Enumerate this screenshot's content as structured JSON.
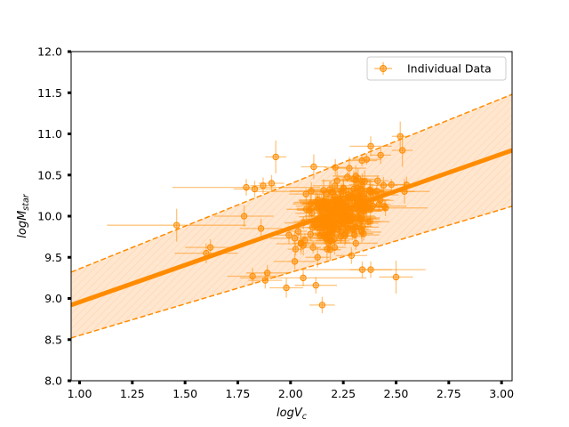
{
  "chart_data": {
    "type": "scatter",
    "title": "",
    "xlabel": "logV",
    "xlabel_sub": "c",
    "ylabel": "logM",
    "ylabel_sub": "star",
    "xlim": [
      0.96,
      3.05
    ],
    "ylim": [
      8.0,
      12.0
    ],
    "x_ticks": [
      1.0,
      1.25,
      1.5,
      1.75,
      2.0,
      2.25,
      2.5,
      2.75,
      3.0
    ],
    "x_tick_labels": [
      "1.00",
      "1.25",
      "1.50",
      "1.75",
      "2.00",
      "2.25",
      "2.50",
      "2.75",
      "3.00"
    ],
    "y_ticks": [
      8.0,
      8.5,
      9.0,
      9.5,
      10.0,
      10.5,
      11.0,
      11.5,
      12.0
    ],
    "y_tick_labels": [
      "8.0",
      "8.5",
      "9.0",
      "9.5",
      "10.0",
      "10.5",
      "11.0",
      "11.5",
      "12.0"
    ],
    "legend": {
      "label": "Individual Data",
      "placement": "top-right"
    },
    "fit_line": {
      "x": [
        0.96,
        3.05
      ],
      "y": [
        8.92,
        10.8
      ]
    },
    "band_upper": {
      "x": [
        0.96,
        3.05
      ],
      "y": [
        9.32,
        11.48
      ]
    },
    "band_lower": {
      "x": [
        0.96,
        3.05
      ],
      "y": [
        8.52,
        10.12
      ]
    },
    "colors": {
      "points": "#ff8c00",
      "fit": "#ff8c00",
      "band": "#ffe0c2"
    },
    "seed": 7,
    "n_generated": 240,
    "points": [
      {
        "x": 1.46,
        "y": 9.89,
        "xerr": 0.33,
        "yerr": 0.2
      },
      {
        "x": 1.6,
        "y": 9.55,
        "xerr": 0.15,
        "yerr": 0.12
      },
      {
        "x": 1.62,
        "y": 9.62,
        "xerr": 0.12,
        "yerr": 0.1
      },
      {
        "x": 1.78,
        "y": 10.0,
        "xerr": 0.14,
        "yerr": 0.13
      },
      {
        "x": 1.79,
        "y": 10.35,
        "xerr": 0.35,
        "yerr": 0.1
      },
      {
        "x": 1.82,
        "y": 9.27,
        "xerr": 0.12,
        "yerr": 0.1
      },
      {
        "x": 1.83,
        "y": 10.33,
        "xerr": 0.1,
        "yerr": 0.1
      },
      {
        "x": 1.86,
        "y": 9.85,
        "xerr": 0.1,
        "yerr": 0.12
      },
      {
        "x": 1.87,
        "y": 10.37,
        "xerr": 0.06,
        "yerr": 0.1
      },
      {
        "x": 1.88,
        "y": 9.22,
        "xerr": 0.08,
        "yerr": 0.1
      },
      {
        "x": 1.89,
        "y": 9.31,
        "xerr": 0.1,
        "yerr": 0.1
      },
      {
        "x": 1.91,
        "y": 10.4,
        "xerr": 0.06,
        "yerr": 0.1
      },
      {
        "x": 1.93,
        "y": 10.72,
        "xerr": 0.05,
        "yerr": 0.2
      },
      {
        "x": 1.98,
        "y": 9.13,
        "xerr": 0.08,
        "yerr": 0.12
      },
      {
        "x": 2.02,
        "y": 9.45,
        "xerr": 0.1,
        "yerr": 0.1
      },
      {
        "x": 2.06,
        "y": 9.25,
        "xerr": 0.3,
        "yerr": 0.1
      },
      {
        "x": 2.11,
        "y": 10.6,
        "xerr": 0.06,
        "yerr": 0.15
      },
      {
        "x": 2.12,
        "y": 9.16,
        "xerr": 0.1,
        "yerr": 0.1
      },
      {
        "x": 2.15,
        "y": 8.92,
        "xerr": 0.06,
        "yerr": 0.1
      },
      {
        "x": 2.34,
        "y": 9.35,
        "xerr": 0.3,
        "yerr": 0.1
      },
      {
        "x": 2.38,
        "y": 10.85,
        "xerr": 0.1,
        "yerr": 0.12
      },
      {
        "x": 2.38,
        "y": 9.35,
        "xerr": 0.1,
        "yerr": 0.1
      },
      {
        "x": 2.5,
        "y": 9.26,
        "xerr": 0.08,
        "yerr": 0.2
      },
      {
        "x": 2.52,
        "y": 10.97,
        "xerr": 0.04,
        "yerr": 0.18
      },
      {
        "x": 2.53,
        "y": 10.8,
        "xerr": 0.05,
        "yerr": 0.2
      },
      {
        "x": 2.54,
        "y": 10.3,
        "xerr": 0.05,
        "yerr": 0.15
      },
      {
        "x": 2.55,
        "y": 10.38,
        "xerr": 0.05,
        "yerr": 0.1
      },
      {
        "x": 2.24,
        "y": 10.3,
        "xerr": 0.42,
        "yerr": 0.1
      },
      {
        "x": 2.45,
        "y": 10.1,
        "xerr": 0.2,
        "yerr": 0.1
      },
      {
        "x": 2.3,
        "y": 10.45,
        "xerr": 0.1,
        "yerr": 0.1
      }
    ]
  }
}
